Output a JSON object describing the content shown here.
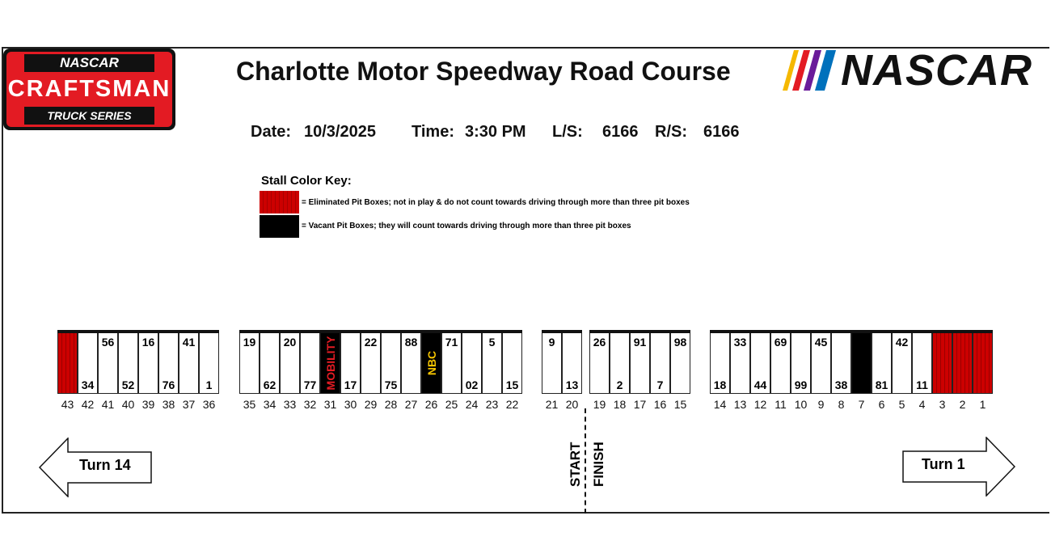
{
  "logo_left": {
    "top": "NASCAR",
    "middle": "CRAFTSMAN",
    "bottom": "TRUCK SERIES"
  },
  "title": "Charlotte Motor Speedway Road Course",
  "logo_right": "NASCAR",
  "info": {
    "date_label": "Date:",
    "date": "10/3/2025",
    "time_label": "Time:",
    "time": "3:30 PM",
    "ls_label": "L/S:",
    "ls": "6166",
    "rs_label": "R/S:",
    "rs": "6166"
  },
  "key": {
    "title": "Stall Color Key:",
    "eliminated": "= Eliminated Pit Boxes; not in play & do not count towards driving through more than three pit boxes",
    "vacant": "= Vacant Pit Boxes; they will count towards driving through more than three pit boxes",
    "colors": {
      "eliminated": "#cc0000",
      "vacant": "#000000"
    }
  },
  "groups": [
    [
      {
        "stall": "43",
        "type": "elim"
      },
      {
        "stall": "42",
        "truck": "34"
      },
      {
        "stall": "41",
        "truck": "56"
      },
      {
        "stall": "40",
        "truck": "52"
      },
      {
        "stall": "39",
        "truck": "16"
      },
      {
        "stall": "38",
        "truck": "76"
      },
      {
        "stall": "37",
        "truck": "41"
      },
      {
        "stall": "36",
        "truck": "1"
      }
    ],
    [
      {
        "stall": "35",
        "truck": "19"
      },
      {
        "stall": "34",
        "truck": "62"
      },
      {
        "stall": "33",
        "truck": "20"
      },
      {
        "stall": "32",
        "truck": "77"
      },
      {
        "stall": "31",
        "type": "sp",
        "label": "MOBILITY",
        "color": "#e31b23"
      },
      {
        "stall": "30",
        "truck": "17"
      },
      {
        "stall": "29",
        "truck": "22"
      },
      {
        "stall": "28",
        "truck": "75"
      },
      {
        "stall": "27",
        "truck": "88"
      },
      {
        "stall": "26",
        "type": "sp",
        "label": "NBC",
        "color": "#f5c400"
      },
      {
        "stall": "25",
        "truck": "71"
      },
      {
        "stall": "24",
        "truck": "02"
      },
      {
        "stall": "23",
        "truck": "5"
      },
      {
        "stall": "22",
        "truck": "15"
      }
    ],
    [
      {
        "stall": "21",
        "truck": "9"
      },
      {
        "stall": "20",
        "truck": "13"
      }
    ],
    [
      {
        "stall": "19",
        "truck": "26"
      },
      {
        "stall": "18",
        "truck": "2"
      },
      {
        "stall": "17",
        "truck": "91"
      },
      {
        "stall": "16",
        "truck": "7"
      },
      {
        "stall": "15",
        "truck": "98"
      }
    ],
    [
      {
        "stall": "14",
        "truck": "18"
      },
      {
        "stall": "13",
        "truck": "33"
      },
      {
        "stall": "12",
        "truck": "44"
      },
      {
        "stall": "11",
        "truck": "69"
      },
      {
        "stall": "10",
        "truck": "99"
      },
      {
        "stall": "9",
        "truck": "45"
      },
      {
        "stall": "8",
        "truck": "38"
      },
      {
        "stall": "7",
        "type": "vac"
      },
      {
        "stall": "6",
        "truck": "81"
      },
      {
        "stall": "5",
        "truck": "42"
      },
      {
        "stall": "4",
        "truck": "11"
      },
      {
        "stall": "3",
        "type": "elim"
      },
      {
        "stall": "2",
        "type": "elim"
      },
      {
        "stall": "1",
        "type": "elim"
      }
    ]
  ],
  "arrows": {
    "left": "Turn 14",
    "right": "Turn 1"
  },
  "start_finish": {
    "start": "START",
    "finish": "FINISH"
  }
}
